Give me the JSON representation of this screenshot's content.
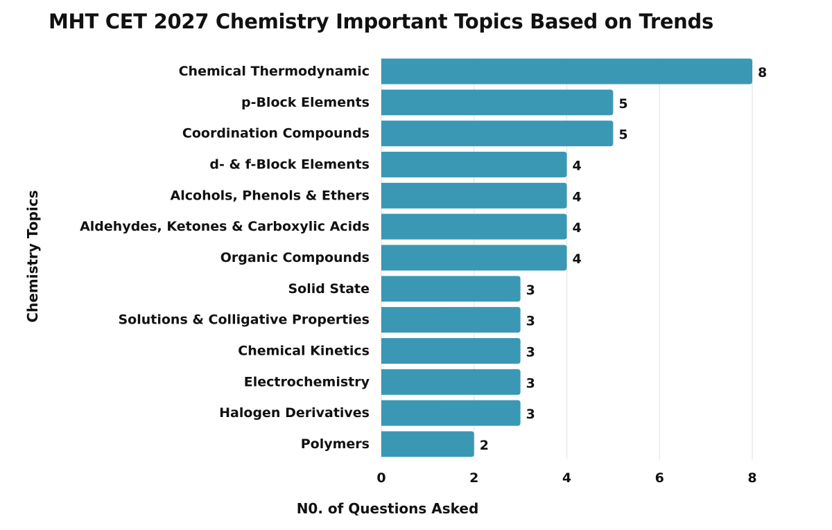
{
  "chart_data": {
    "type": "bar",
    "orientation": "horizontal",
    "title": "MHT CET 2027 Chemistry Important Topics Based on Trends",
    "xlabel": "N0. of Questions Asked",
    "ylabel": "Chemistry Topics",
    "categories": [
      "Chemical Thermodynamic",
      "p-Block Elements",
      "Coordination Compounds",
      "d- & f-Block Elements",
      "Alcohols, Phenols & Ethers",
      "Aldehydes, Ketones & Carboxylic Acids",
      "Organic Compounds",
      "Solid State",
      "Solutions & Colligative Properties",
      "Chemical Kinetics",
      "Electrochemistry",
      "Halogen Derivatives",
      "Polymers"
    ],
    "values": [
      8,
      5,
      5,
      4,
      4,
      4,
      4,
      3,
      3,
      3,
      3,
      3,
      2
    ],
    "xlim": [
      0,
      8
    ],
    "xticks": [
      0,
      2,
      4,
      6,
      8
    ],
    "grid": true,
    "bar_color": "#3a98b4",
    "grid_color": "#e4e4e4",
    "text_color": "#111111"
  }
}
